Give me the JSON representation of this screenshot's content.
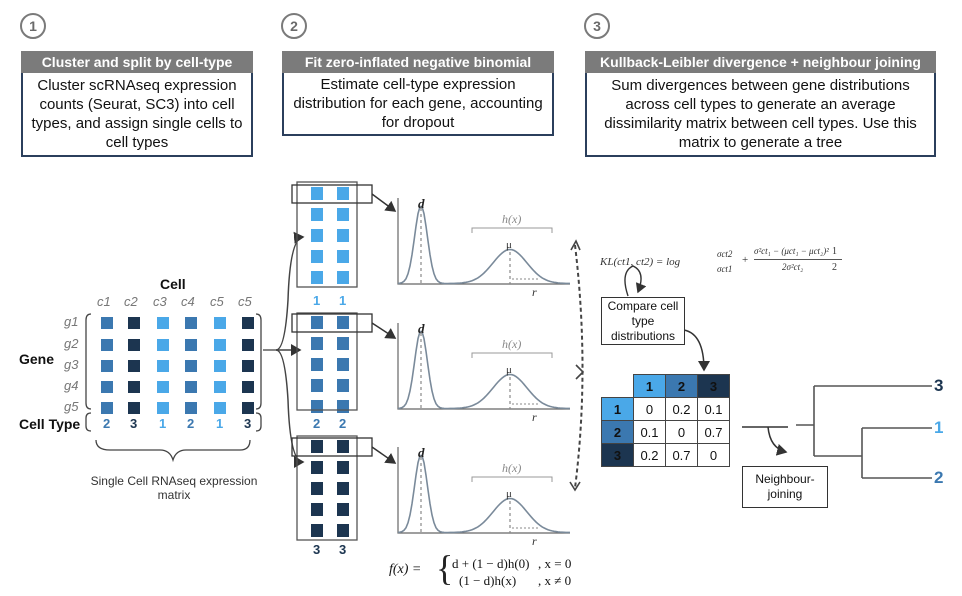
{
  "steps": [
    {
      "number": "1",
      "header": "Cluster and split by cell-type",
      "description": "Cluster scRNAseq expression counts (Seurat, SC3) into cell types, and assign single cells to cell types"
    },
    {
      "number": "2",
      "header": "Fit zero-inflated negative binomial",
      "description": "Estimate cell-type expression distribution for each gene, accounting for dropout"
    },
    {
      "number": "3",
      "header": "Kullback-Leibler divergence + neighbour joining",
      "description": "Sum divergences between gene distributions across cell types to generate an average dissimilarity matrix between cell types. Use this matrix to generate a tree"
    }
  ],
  "matrix": {
    "cell_title": "Cell",
    "gene_title": "Gene",
    "celltype_title": "Cell Type",
    "columns": [
      "c1",
      "c2",
      "c3",
      "c4",
      "c5",
      "c5"
    ],
    "genes": [
      "g1",
      "g2",
      "g3",
      "g4",
      "g5"
    ],
    "cell_types": [
      "2",
      "3",
      "1",
      "2",
      "1",
      "3"
    ],
    "caption": "Single Cell RNAseq expression matrix"
  },
  "groups": [
    {
      "labels": [
        "1",
        "1"
      ]
    },
    {
      "labels": [
        "2",
        "2"
      ]
    },
    {
      "labels": [
        "3",
        "3"
      ]
    }
  ],
  "distribution": {
    "d_label": "d",
    "h_label": "h(x)",
    "mu_label": "μ",
    "r_label": "r"
  },
  "zinb_formula": {
    "lhs": "f(x) =",
    "case1": "d + (1 − d)h(0)",
    "cond1": ", x = 0",
    "case2": "(1 − d)h(x)",
    "cond2": ", x ≠ 0"
  },
  "kl_formula": {
    "lhs": "KL(ct1, ct2) = log",
    "ratio_num": "σct2",
    "ratio_den": "σct1",
    "frac_num": "σ²ct₁ − (μct₁ − μct₂)²",
    "frac_den": "2σ²ct₂",
    "tail_num": "1",
    "tail_den": "2"
  },
  "compare_box": "Compare cell type distributions",
  "kl_matrix": {
    "headers": [
      "1",
      "2",
      "3"
    ],
    "rows": [
      {
        "label": "1",
        "values": [
          "0",
          "0.2",
          "0.1"
        ]
      },
      {
        "label": "2",
        "values": [
          "0.1",
          "0",
          "0.7"
        ]
      },
      {
        "label": "3",
        "values": [
          "0.2",
          "0.7",
          "0"
        ]
      }
    ]
  },
  "nj_box": "Neighbour-joining",
  "tree_leaves": [
    "3",
    "1",
    "2"
  ],
  "colors": {
    "type1": "#4aa8e8",
    "type2": "#3b78b0",
    "type3": "#1c3550",
    "header_bg": "#7b7b7b",
    "box_border": "#2b3f5c",
    "curve": "#7a8a9a"
  }
}
